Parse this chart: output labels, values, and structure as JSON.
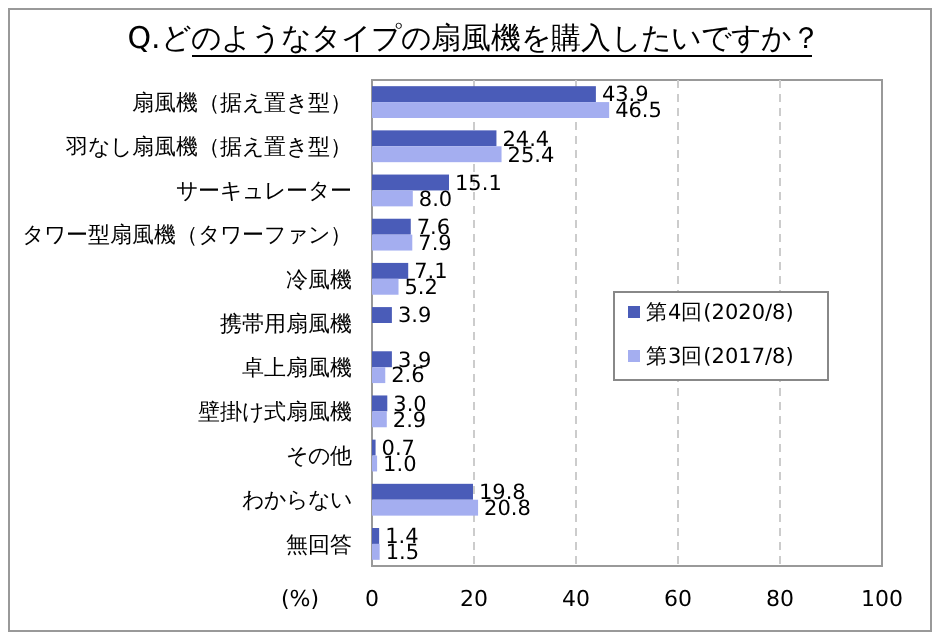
{
  "chart_data": {
    "type": "bar",
    "orientation": "horizontal",
    "title": "Q.どのようなタイプの扇風機を購入したいですか？",
    "xlabel": "(%)",
    "categories": [
      "扇風機（据え置き型）",
      "羽なし扇風機（据え置き型）",
      "サーキュレーター",
      "タワー型扇風機（タワーファン）",
      "冷風機",
      "携帯用扇風機",
      "卓上扇風機",
      "壁掛け式扇風機",
      "その他",
      "わからない",
      "無回答"
    ],
    "series": [
      {
        "name": "第4回(2020/8)",
        "color": "#4a5cb8",
        "values": [
          43.9,
          24.4,
          15.1,
          7.6,
          7.1,
          3.9,
          3.9,
          3.0,
          0.7,
          19.8,
          1.4
        ],
        "value_labels": [
          "43.9",
          "24.4",
          "15.1",
          "7.6",
          "7.1",
          "3.9",
          "3.9",
          "3.0",
          "0.7",
          "19.8",
          "1.4"
        ]
      },
      {
        "name": "第3回(2017/8)",
        "color": "#a4aef0",
        "values": [
          46.5,
          25.4,
          8.0,
          7.9,
          5.2,
          null,
          2.6,
          2.9,
          1.0,
          20.8,
          1.5
        ],
        "value_labels": [
          "46.5",
          "25.4",
          "8.0",
          "7.9",
          "5.2",
          null,
          "2.6",
          "2.9",
          "1.0",
          "20.8",
          "1.5"
        ]
      }
    ],
    "xlim": [
      0,
      100
    ],
    "xticks": [
      0,
      20,
      40,
      60,
      80,
      100
    ],
    "grid": "x",
    "legend": "right"
  }
}
